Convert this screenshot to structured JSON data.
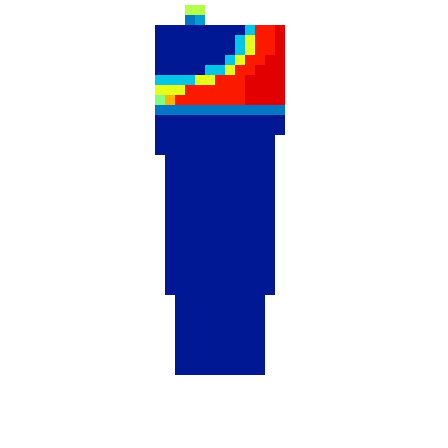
{
  "chart_data": {
    "type": "heatmap",
    "x": [
      160,
      170,
      180,
      190,
      200,
      210,
      220,
      230,
      240,
      250,
      260,
      270,
      280
    ],
    "y": [
      10,
      20,
      30,
      40,
      50,
      60,
      70,
      80,
      90,
      100,
      110,
      120,
      130,
      140,
      150,
      160,
      170,
      180,
      190,
      200,
      210,
      220,
      230,
      240,
      250,
      260,
      270,
      280,
      290,
      300,
      310,
      320,
      330,
      340,
      350,
      360,
      370
    ],
    "z": [
      [
        null,
        null,
        null,
        0.55,
        0.55,
        null,
        null,
        null,
        null,
        null,
        null,
        null,
        null
      ],
      [
        null,
        null,
        null,
        0.2,
        0.25,
        null,
        null,
        null,
        null,
        null,
        null,
        null,
        null
      ],
      [
        0.05,
        0.05,
        0.05,
        0.05,
        0.05,
        0.05,
        0.05,
        0.05,
        0.05,
        0.3,
        0.85,
        0.85,
        0.9
      ],
      [
        0.05,
        0.05,
        0.05,
        0.05,
        0.05,
        0.05,
        0.05,
        0.05,
        0.3,
        0.6,
        0.85,
        0.85,
        0.9
      ],
      [
        0.05,
        0.05,
        0.05,
        0.05,
        0.05,
        0.05,
        0.05,
        0.05,
        0.3,
        0.6,
        0.85,
        0.85,
        0.9
      ],
      [
        0.05,
        0.05,
        0.05,
        0.05,
        0.05,
        0.05,
        0.05,
        0.3,
        0.6,
        0.85,
        0.85,
        0.9,
        0.9
      ],
      [
        0.05,
        0.05,
        0.05,
        0.05,
        0.05,
        0.3,
        0.3,
        0.6,
        0.85,
        0.85,
        0.9,
        0.9,
        0.9
      ],
      [
        0.3,
        0.3,
        0.3,
        0.3,
        0.6,
        0.6,
        0.85,
        0.85,
        0.85,
        0.9,
        0.9,
        0.9,
        0.9
      ],
      [
        0.6,
        0.6,
        0.6,
        0.85,
        0.85,
        0.85,
        0.85,
        0.85,
        0.85,
        0.9,
        0.9,
        0.9,
        0.9
      ],
      [
        0.5,
        0.7,
        0.85,
        0.85,
        0.85,
        0.85,
        0.85,
        0.85,
        0.85,
        0.9,
        0.9,
        0.9,
        0.9
      ],
      [
        0.2,
        0.2,
        0.2,
        0.2,
        0.2,
        0.2,
        0.2,
        0.2,
        0.2,
        0.2,
        0.2,
        0.2,
        0.2
      ],
      [
        0.05,
        0.05,
        0.05,
        0.05,
        0.05,
        0.05,
        0.05,
        0.05,
        0.05,
        0.05,
        0.05,
        0.05,
        0.05
      ],
      [
        0.05,
        0.05,
        0.05,
        0.05,
        0.05,
        0.05,
        0.05,
        0.05,
        0.05,
        0.05,
        0.05,
        0.05,
        0.05
      ],
      [
        0.05,
        0.05,
        0.05,
        0.05,
        0.05,
        0.05,
        0.05,
        0.05,
        0.05,
        0.05,
        0.05,
        0.05,
        null
      ],
      [
        0.05,
        0.05,
        0.05,
        0.05,
        0.05,
        0.05,
        0.05,
        0.05,
        0.05,
        0.05,
        0.05,
        0.05,
        null
      ],
      [
        null,
        0.05,
        0.05,
        0.05,
        0.05,
        0.05,
        0.05,
        0.05,
        0.05,
        0.05,
        0.05,
        0.05,
        null
      ],
      [
        null,
        0.05,
        0.05,
        0.05,
        0.05,
        0.05,
        0.05,
        0.05,
        0.05,
        0.05,
        0.05,
        0.05,
        null
      ],
      [
        null,
        0.05,
        0.05,
        0.05,
        0.05,
        0.05,
        0.05,
        0.05,
        0.05,
        0.05,
        0.05,
        0.05,
        null
      ],
      [
        null,
        0.05,
        0.05,
        0.05,
        0.05,
        0.05,
        0.05,
        0.05,
        0.05,
        0.05,
        0.05,
        0.05,
        null
      ],
      [
        null,
        0.05,
        0.05,
        0.05,
        0.05,
        0.05,
        0.05,
        0.05,
        0.05,
        0.05,
        0.05,
        0.05,
        null
      ],
      [
        null,
        0.05,
        0.05,
        0.05,
        0.05,
        0.05,
        0.05,
        0.05,
        0.05,
        0.05,
        0.05,
        0.05,
        null
      ],
      [
        null,
        0.05,
        0.05,
        0.05,
        0.05,
        0.05,
        0.05,
        0.05,
        0.05,
        0.05,
        0.05,
        0.05,
        null
      ],
      [
        null,
        0.05,
        0.05,
        0.05,
        0.05,
        0.05,
        0.05,
        0.05,
        0.05,
        0.05,
        0.05,
        0.05,
        null
      ],
      [
        null,
        0.05,
        0.05,
        0.05,
        0.05,
        0.05,
        0.05,
        0.05,
        0.05,
        0.05,
        0.05,
        0.05,
        null
      ],
      [
        null,
        0.05,
        0.05,
        0.05,
        0.05,
        0.05,
        0.05,
        0.05,
        0.05,
        0.05,
        0.05,
        0.05,
        null
      ],
      [
        null,
        0.05,
        0.05,
        0.05,
        0.05,
        0.05,
        0.05,
        0.05,
        0.05,
        0.05,
        0.05,
        0.05,
        null
      ],
      [
        null,
        0.05,
        0.05,
        0.05,
        0.05,
        0.05,
        0.05,
        0.05,
        0.05,
        0.05,
        0.05,
        0.05,
        null
      ],
      [
        null,
        0.05,
        0.05,
        0.05,
        0.05,
        0.05,
        0.05,
        0.05,
        0.05,
        0.05,
        0.05,
        0.05,
        null
      ],
      [
        null,
        0.05,
        0.05,
        0.05,
        0.05,
        0.05,
        0.05,
        0.05,
        0.05,
        0.05,
        0.05,
        0.05,
        null
      ],
      [
        null,
        null,
        0.05,
        0.05,
        0.05,
        0.05,
        0.05,
        0.05,
        0.05,
        0.05,
        0.05,
        null,
        null
      ],
      [
        null,
        null,
        0.05,
        0.05,
        0.05,
        0.05,
        0.05,
        0.05,
        0.05,
        0.05,
        0.05,
        null,
        null
      ],
      [
        null,
        null,
        0.05,
        0.05,
        0.05,
        0.05,
        0.05,
        0.05,
        0.05,
        0.05,
        0.05,
        null,
        null
      ],
      [
        null,
        null,
        0.05,
        0.05,
        0.05,
        0.05,
        0.05,
        0.05,
        0.05,
        0.05,
        0.05,
        null,
        null
      ],
      [
        null,
        null,
        0.05,
        0.05,
        0.05,
        0.05,
        0.05,
        0.05,
        0.05,
        0.05,
        0.05,
        null,
        null
      ],
      [
        null,
        null,
        0.05,
        0.05,
        0.05,
        0.05,
        0.05,
        0.05,
        0.05,
        0.05,
        0.05,
        null,
        null
      ],
      [
        null,
        null,
        0.05,
        0.05,
        0.05,
        0.05,
        0.05,
        0.05,
        0.05,
        0.05,
        0.05,
        null,
        null
      ],
      [
        null,
        null,
        0.05,
        0.05,
        0.05,
        0.05,
        0.05,
        0.05,
        0.05,
        0.05,
        0.05,
        null,
        null
      ]
    ],
    "zlim": [
      0,
      1
    ],
    "xlim": [
      0,
      448
    ],
    "ylim": [
      448,
      0
    ],
    "tick_labels": false,
    "grid": false
  }
}
